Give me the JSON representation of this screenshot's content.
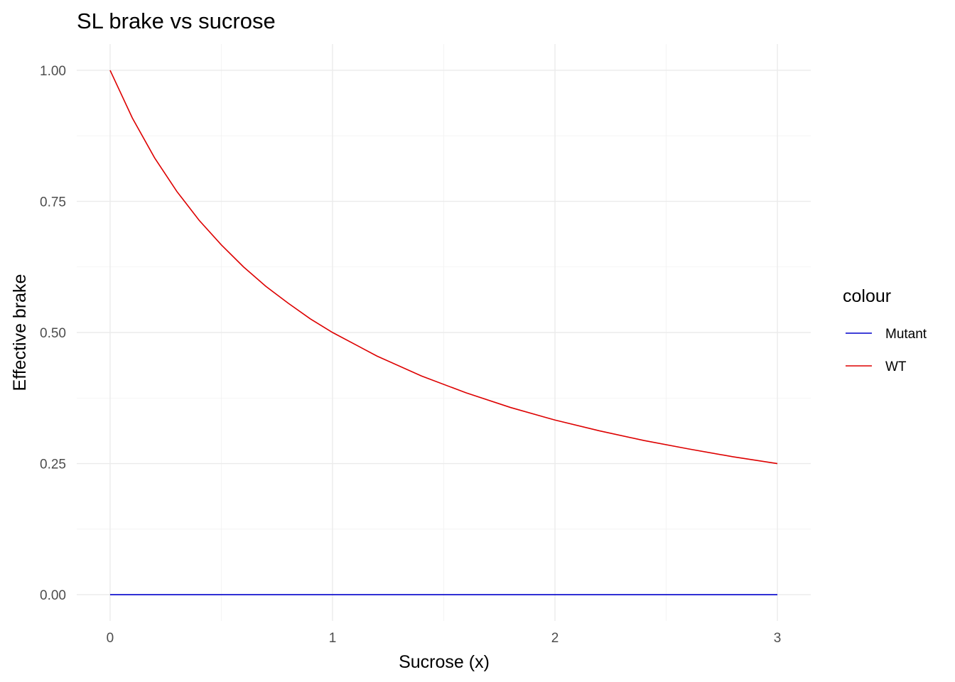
{
  "chart_data": {
    "type": "line",
    "title": "SL brake vs sucrose",
    "xlabel": "Sucrose (x)",
    "ylabel": "Effective brake",
    "xlim": [
      -0.15,
      3.15
    ],
    "ylim": [
      -0.05,
      1.05
    ],
    "x_ticks": [
      0,
      1,
      2,
      3
    ],
    "x_tick_labels": [
      "0",
      "1",
      "2",
      "3"
    ],
    "y_ticks": [
      0,
      0.25,
      0.5,
      0.75,
      1.0
    ],
    "y_tick_labels": [
      "0.00",
      "0.25",
      "0.50",
      "0.75",
      "1.00"
    ],
    "grid": true,
    "legend": {
      "title": "colour",
      "position": "right",
      "entries": [
        "Mutant",
        "WT"
      ]
    },
    "series": [
      {
        "name": "Mutant",
        "color": "#0000cc",
        "x": [
          0,
          0.25,
          0.5,
          0.75,
          1.0,
          1.25,
          1.5,
          1.75,
          2.0,
          2.25,
          2.5,
          2.75,
          3.0
        ],
        "y": [
          0,
          0,
          0,
          0,
          0,
          0,
          0,
          0,
          0,
          0,
          0,
          0,
          0
        ]
      },
      {
        "name": "WT",
        "color": "#dd0000",
        "x": [
          0,
          0.1,
          0.2,
          0.3,
          0.4,
          0.5,
          0.6,
          0.7,
          0.8,
          0.9,
          1.0,
          1.2,
          1.4,
          1.6,
          1.8,
          2.0,
          2.2,
          2.4,
          2.6,
          2.8,
          3.0
        ],
        "y": [
          1.0,
          0.909,
          0.833,
          0.769,
          0.714,
          0.667,
          0.625,
          0.588,
          0.556,
          0.526,
          0.5,
          0.455,
          0.417,
          0.385,
          0.357,
          0.333,
          0.3125,
          0.294,
          0.278,
          0.263,
          0.25
        ]
      }
    ]
  }
}
